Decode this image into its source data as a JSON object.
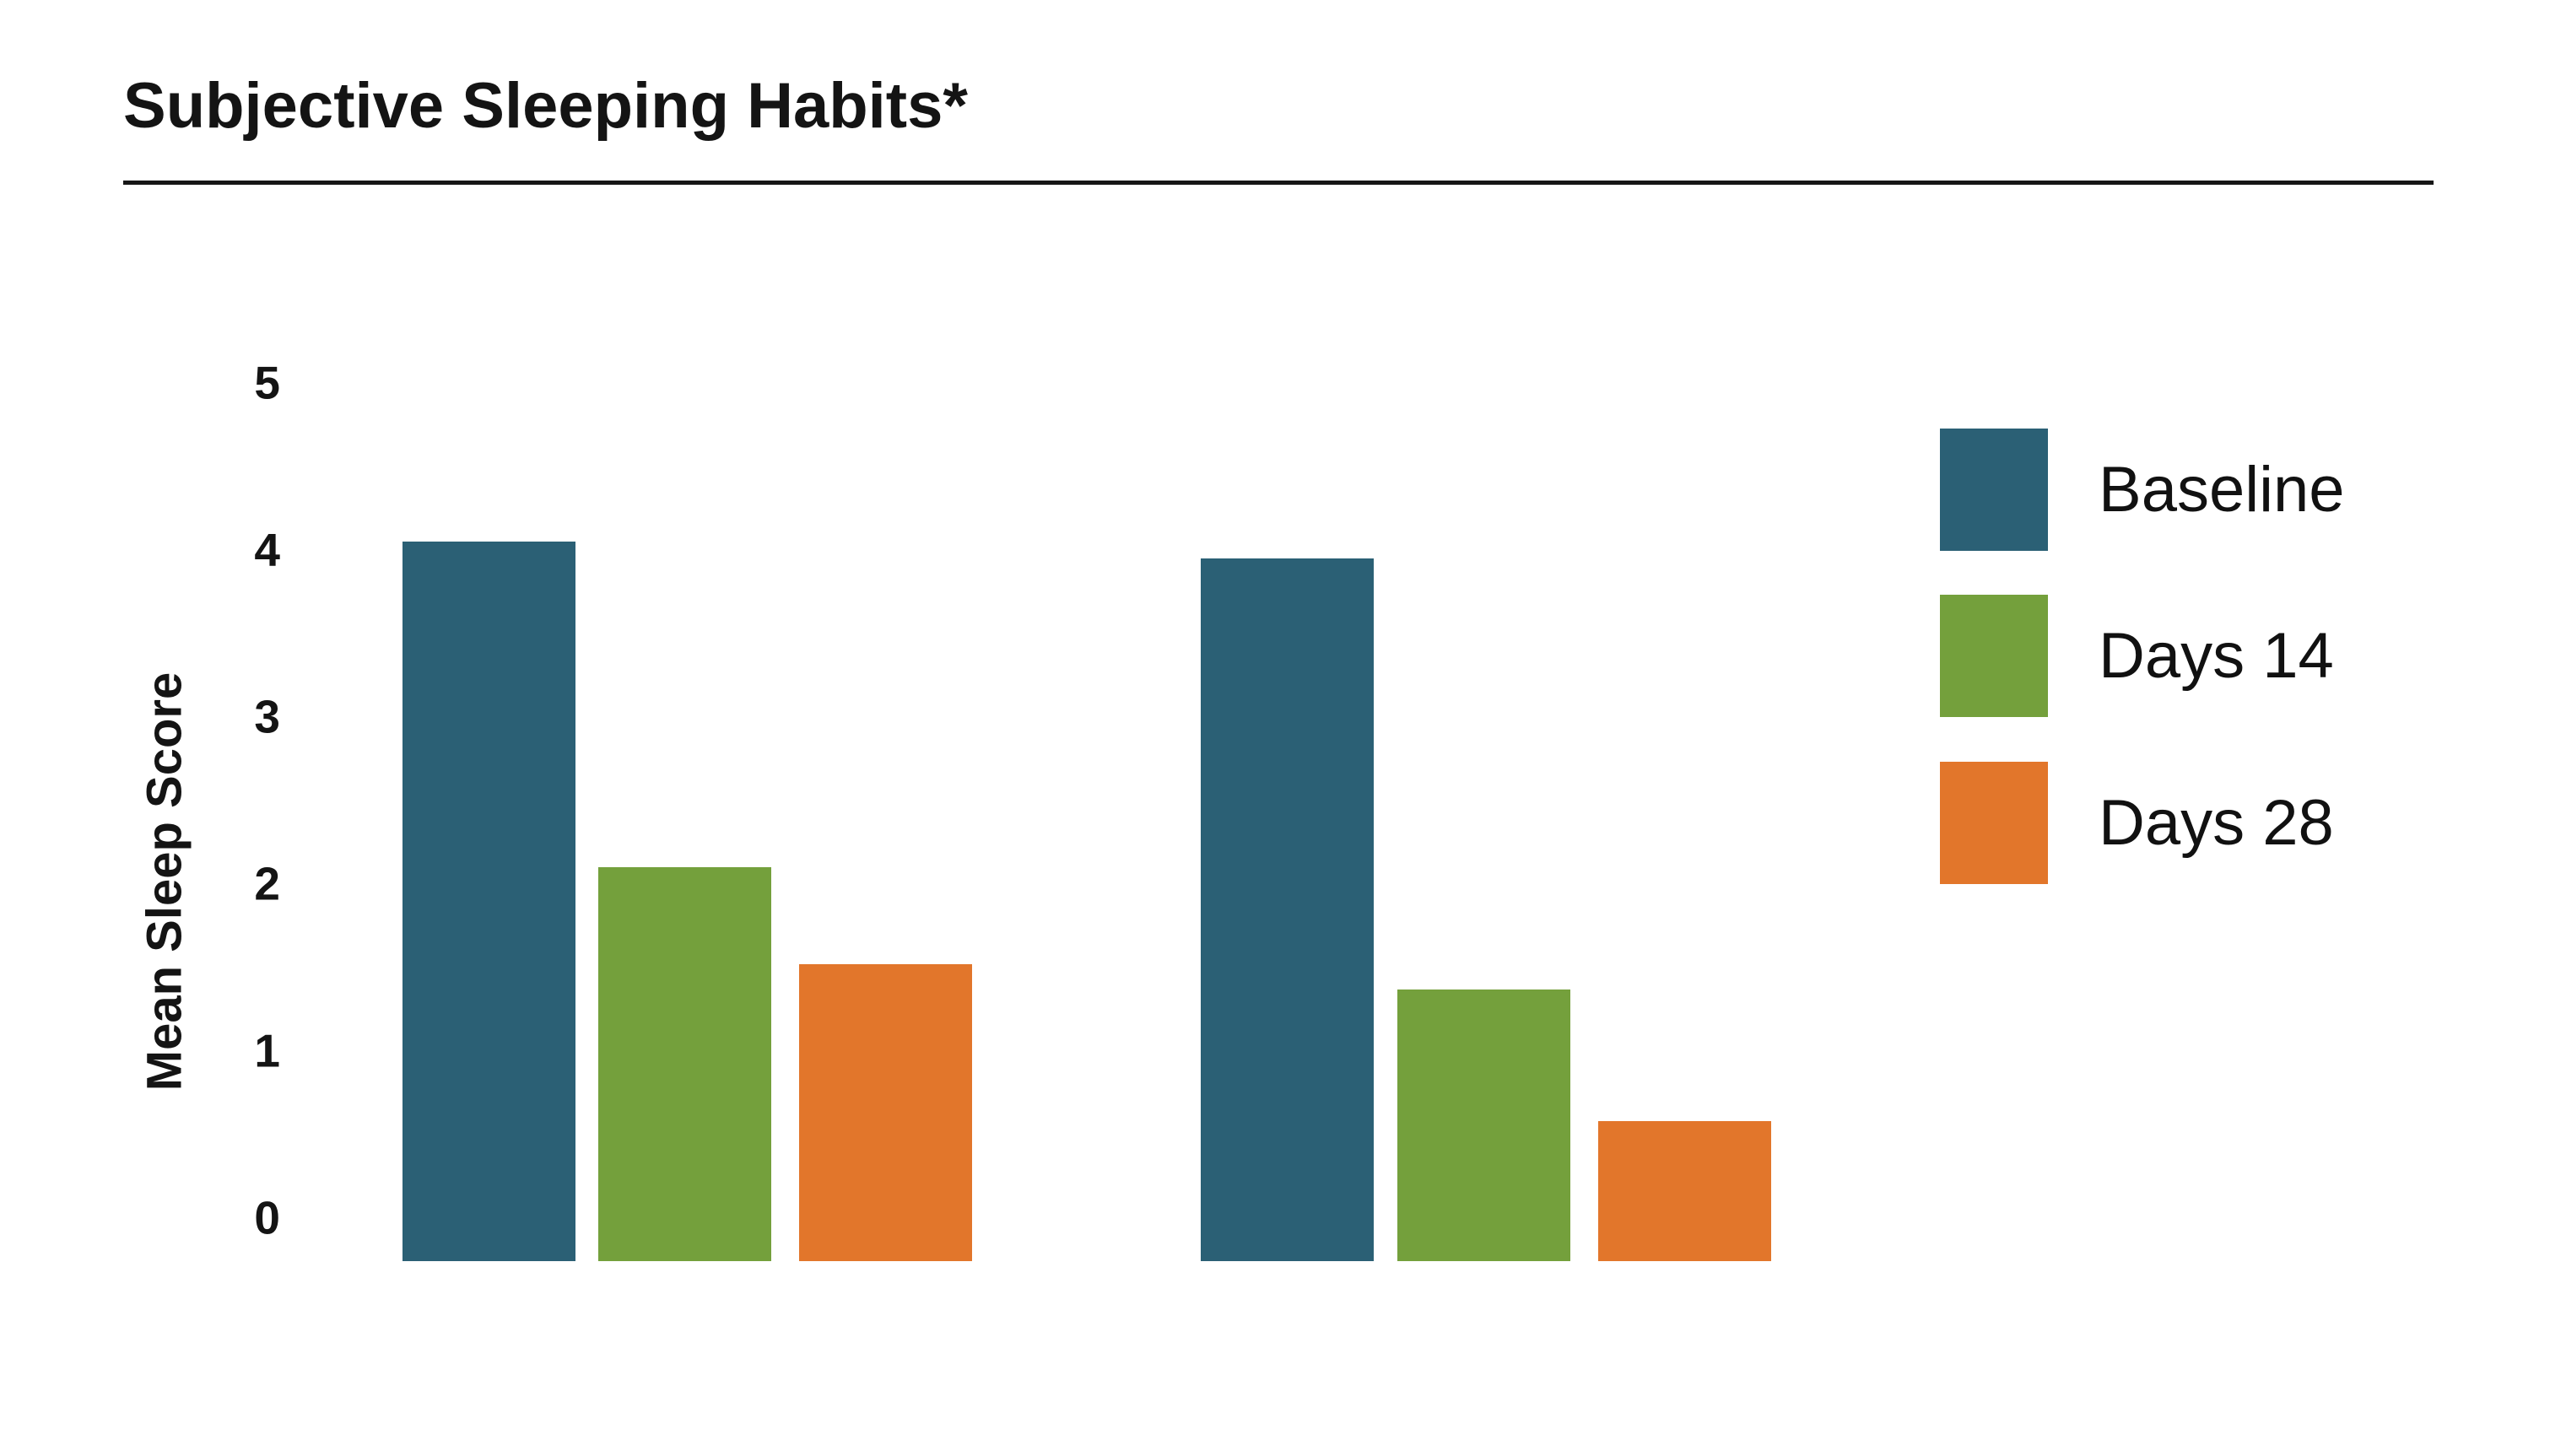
{
  "title": "Subjective Sleeping Habits*",
  "chart_data": {
    "type": "bar",
    "title": "Subjective Sleeping Habits*",
    "ylabel": "Mean Sleep Score",
    "xlabel": "",
    "ylim": [
      0,
      5
    ],
    "yticks": [
      5,
      4,
      3,
      2,
      1,
      0
    ],
    "grid": false,
    "categories": [
      "",
      ""
    ],
    "series": [
      {
        "name": "Baseline",
        "color": "#2B6075",
        "values": [
          4.05,
          3.95
        ]
      },
      {
        "name": "Days 14",
        "color": "#74A03C",
        "values": [
          2.1,
          1.37
        ]
      },
      {
        "name": "Days 28",
        "color": "#E2762B",
        "values": [
          1.52,
          0.58
        ]
      }
    ],
    "legend": [
      "Baseline",
      "Days 14",
      "Days 28"
    ],
    "legend_position": "right"
  },
  "colors": {
    "background": "#ffffff",
    "text": "#141414",
    "divider": "#161616",
    "baseline_series": "#2B6075",
    "days14_series": "#74A03C",
    "days28_series": "#E2762B"
  }
}
